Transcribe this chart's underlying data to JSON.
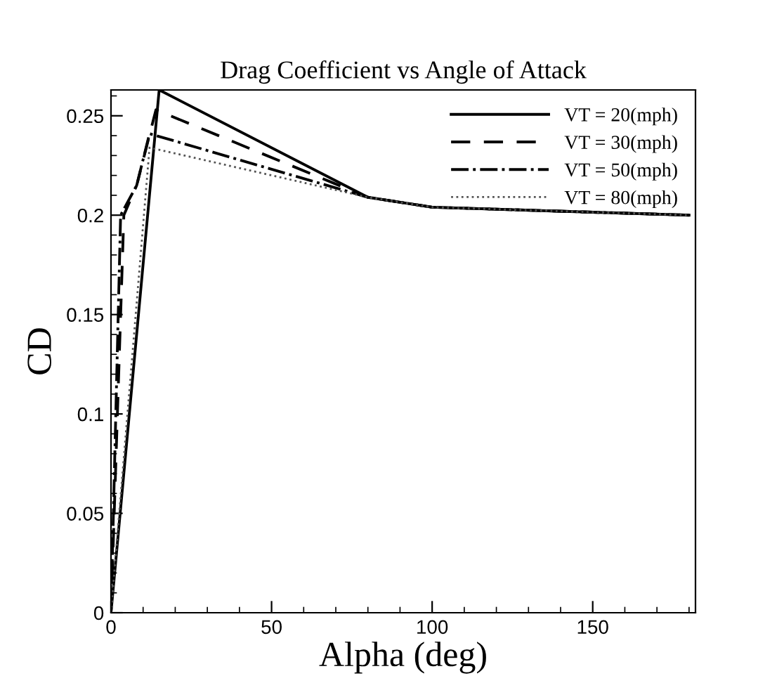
{
  "chart_data": {
    "type": "line",
    "title": "Drag Coefficient vs Angle of Attack",
    "xlabel": "Alpha (deg)",
    "ylabel": "CD",
    "xlim": [
      0,
      182
    ],
    "xticks": [
      0,
      50,
      100,
      150
    ],
    "ylim": [
      0,
      0.263
    ],
    "yticks": [
      0,
      0.05,
      0.1,
      0.15,
      0.2,
      0.25
    ],
    "grid": false,
    "legend": "top right",
    "marker": "none",
    "series": [
      {
        "name": "VT = 20(mph)",
        "color": "#000000",
        "line_style": "solid",
        "x": [
          0,
          15,
          80,
          100,
          180
        ],
        "values": [
          0,
          0.263,
          0.209,
          0.204,
          0.2
        ]
      },
      {
        "name": "VT = 30(mph)",
        "color": "#000000",
        "line_style": "dashed",
        "x": [
          0,
          4,
          8,
          14,
          80,
          100,
          180
        ],
        "values": [
          0,
          0.2,
          0.215,
          0.253,
          0.209,
          0.204,
          0.2
        ]
      },
      {
        "name": "VT = 50(mph)",
        "color": "#000000",
        "line_style": "dashdot",
        "x": [
          0,
          3,
          8,
          12,
          80,
          100,
          180
        ],
        "values": [
          0,
          0.2,
          0.215,
          0.241,
          0.209,
          0.204,
          0.2
        ]
      },
      {
        "name": "VT = 80(mph)",
        "color": "#555555",
        "line_style": "dotted",
        "x": [
          0,
          12,
          80,
          100,
          180
        ],
        "values": [
          0,
          0.234,
          0.209,
          0.204,
          0.2
        ]
      }
    ]
  }
}
